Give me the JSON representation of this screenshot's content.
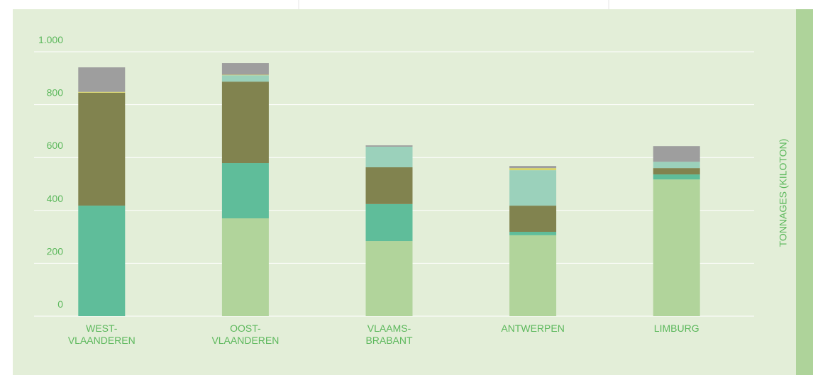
{
  "chart_data": {
    "type": "stacked_bar",
    "y_axis_label": "TONNAGES (KILOTON)",
    "categories": [
      "WEST-\nVLAANDEREN",
      "OOST-\nVLAANDEREN",
      "VLAAMS-\nBRABANT",
      "ANTWERPEN",
      "LIMBURG"
    ],
    "series": [
      {
        "color": "#b1d49b",
        "values": [
          0,
          370,
          284,
          306,
          517
        ]
      },
      {
        "color": "#5fbd9a",
        "values": [
          418,
          209,
          140,
          13,
          19
        ]
      },
      {
        "color": "#81834f",
        "values": [
          427,
          308,
          139,
          99,
          24
        ]
      },
      {
        "color": "#9bd1bb",
        "values": [
          0,
          24,
          78,
          134,
          24
        ]
      },
      {
        "color": "#d9d56a",
        "values": [
          3,
          2,
          0,
          8,
          0
        ]
      },
      {
        "color": "#9e9e9e",
        "values": [
          93,
          44,
          5,
          8,
          59
        ]
      }
    ],
    "ylim": [
      0,
      1000
    ],
    "yticks": [
      0,
      200,
      400,
      600,
      800,
      {
        "value": 1000,
        "label": "1.000"
      }
    ],
    "grid": true
  }
}
